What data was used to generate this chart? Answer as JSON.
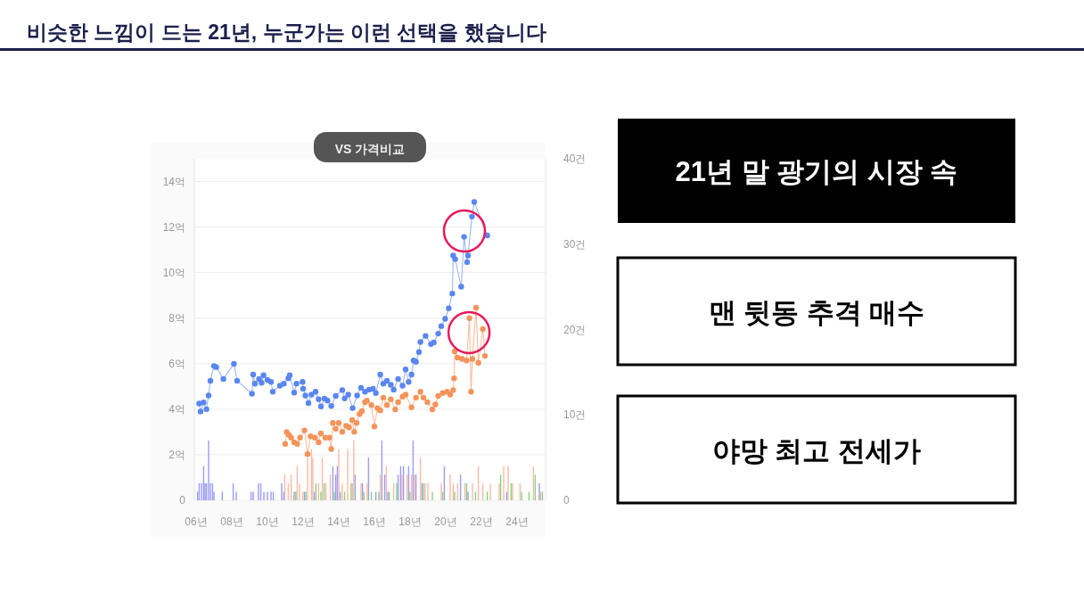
{
  "chart_data": [
    {
      "type": "line",
      "title": "비슷한 느낌이 드는 21년, 누군가는 이런 선택을 했습니다",
      "annotations": [
        "VS 가격비교"
      ],
      "xlim": [
        5.9,
        25.6
      ],
      "xticks": [
        {
          "value": 6,
          "label": "06년"
        },
        {
          "value": 8,
          "label": "08년"
        },
        {
          "value": 10,
          "label": "10년"
        },
        {
          "value": 12,
          "label": "12년"
        },
        {
          "value": 14,
          "label": "14년"
        },
        {
          "value": 16,
          "label": "16년"
        },
        {
          "value": 18,
          "label": "18년"
        },
        {
          "value": 20,
          "label": "20년"
        },
        {
          "value": 22,
          "label": "22년"
        },
        {
          "value": 24,
          "label": "24년"
        }
      ],
      "ylim": [
        0,
        15
      ],
      "yticks": [
        0,
        {
          "value": 2,
          "label": "2억"
        },
        {
          "value": 4,
          "label": "4억"
        },
        {
          "value": 6,
          "label": "6억"
        },
        {
          "value": 8,
          "label": "8억"
        },
        {
          "value": 10,
          "label": "10억"
        },
        {
          "value": 12,
          "label": "12억"
        },
        {
          "value": 14,
          "label": "14억"
        }
      ],
      "y2lim": [
        0,
        40
      ],
      "y2ticks": [
        0,
        {
          "value": 10,
          "label": "10건"
        },
        {
          "value": 20,
          "label": "20건"
        },
        {
          "value": 30,
          "label": "30건"
        },
        {
          "value": 40,
          "label": "40건"
        }
      ],
      "grid": "y",
      "marker": "circle",
      "series": [
        {
          "type": "bar",
          "axis": "y2",
          "color": "#7b7bf5",
          "x": [
            6.08,
            6.17,
            6.3,
            6.42,
            6.5,
            6.58,
            6.7,
            6.8,
            6.92,
            7.0,
            7.47,
            8.08,
            8.25,
            9.08,
            9.2,
            9.5,
            9.63,
            9.8,
            10.0,
            10.2,
            10.33,
            10.8,
            10.92,
            11.5,
            12.08,
            12.63,
            13.67,
            13.83,
            13.92,
            14.08,
            14.92,
            15.33,
            15.67,
            16.08,
            16.42,
            16.58,
            16.75,
            17.33,
            17.47,
            17.63,
            17.92,
            18.17,
            18.33,
            18.67,
            19.92,
            20.83,
            21.25,
            23.42,
            25.25
          ],
          "values": [
            1,
            2,
            2,
            4,
            2,
            2,
            7,
            2,
            2,
            1,
            1,
            2,
            1,
            1,
            1,
            2,
            2,
            1,
            1,
            1,
            1,
            2,
            1,
            1,
            1,
            1,
            4,
            3,
            4,
            1,
            3,
            2,
            5,
            1,
            7,
            3,
            1,
            3,
            4,
            4,
            4,
            7,
            3,
            2,
            4,
            3,
            1,
            1,
            2
          ]
        },
        {
          "type": "bar",
          "axis": "y2",
          "color": "#f5a58a",
          "x": [
            10.97,
            11.17,
            11.33,
            11.67,
            11.8,
            11.99,
            12.25,
            12.47,
            12.55,
            12.87,
            13.08,
            13.28,
            13.53,
            14.0,
            14.2,
            14.5,
            14.67,
            14.84,
            15.25,
            15.59,
            16.33,
            16.67,
            17.08,
            17.55,
            17.83,
            18.08,
            18.25,
            18.58,
            18.84,
            19.0,
            19.75,
            20.25,
            20.42,
            20.67,
            21.08,
            21.5,
            21.83,
            22.08,
            22.5,
            23.0,
            23.25,
            23.5,
            23.75,
            24.17,
            24.92,
            25.33
          ],
          "values": [
            3,
            2,
            3,
            4,
            2,
            1,
            5,
            6,
            5,
            2,
            5,
            2,
            3,
            6,
            2,
            6,
            2,
            7,
            2,
            2,
            3,
            4,
            2,
            3,
            3,
            3,
            3,
            5,
            2,
            2,
            2,
            3,
            2,
            2,
            2,
            2,
            4,
            2,
            2,
            2,
            4,
            4,
            2,
            2,
            4,
            1
          ]
        },
        {
          "type": "bar",
          "axis": "y2",
          "color": "#5cc85c",
          "x": [
            11.59,
            12.16,
            12.72,
            13.0,
            13.18,
            13.75,
            14.33,
            14.75,
            15.41,
            15.83,
            16.25,
            16.83,
            17.25,
            18.0,
            18.75,
            19.25,
            19.83,
            20.5,
            21.17,
            21.67,
            22.33,
            23.08,
            23.67,
            24.26,
            24.67,
            25.02,
            25.42
          ],
          "values": [
            1,
            1,
            2,
            1,
            2,
            1,
            1,
            2,
            1,
            1,
            1,
            1,
            2,
            1,
            2,
            1,
            1,
            1,
            2,
            1,
            1,
            3,
            2,
            1,
            1,
            3,
            1
          ]
        },
        {
          "type": "line",
          "color": "#f4935a",
          "x": [
            11.0,
            11.08,
            11.2,
            11.33,
            11.5,
            11.67,
            11.83,
            12.08,
            12.25,
            12.42,
            12.67,
            12.87,
            13.0,
            13.25,
            13.47,
            13.58,
            13.67,
            13.83,
            14.0,
            14.2,
            14.42,
            14.58,
            14.75,
            14.87,
            15.0,
            15.17,
            15.3,
            15.47,
            15.58,
            15.83,
            16.0,
            16.17,
            16.33,
            16.5,
            16.7,
            16.92,
            17.17,
            17.33,
            17.58,
            17.75,
            18.08,
            18.33,
            18.58,
            18.75,
            18.97,
            19.25,
            19.42,
            19.58,
            19.83,
            20.08,
            20.25,
            20.42,
            20.47,
            20.5,
            20.67,
            20.92,
            21.17,
            21.33,
            21.42,
            21.5,
            21.7,
            21.83,
            22.08,
            22.2
          ],
          "values": [
            2.48,
            3.0,
            2.88,
            2.75,
            2.55,
            2.48,
            2.75,
            3.07,
            2.03,
            2.81,
            2.75,
            2.55,
            2.94,
            2.75,
            2.75,
            2.25,
            3.4,
            3.14,
            3.4,
            3.01,
            3.27,
            3.2,
            3.53,
            3.01,
            3.4,
            3.79,
            3.92,
            4.31,
            4.38,
            4.18,
            3.24,
            4.05,
            3.95,
            4.51,
            4.18,
            4.44,
            3.99,
            4.31,
            4.55,
            4.64,
            4.08,
            4.51,
            4.77,
            4.51,
            4.31,
            3.99,
            4.21,
            4.58,
            4.71,
            4.77,
            4.64,
            4.84,
            5.36,
            6.54,
            6.27,
            6.21,
            6.14,
            8.0,
            4.77,
            6.21,
            8.46,
            6.04,
            7.52,
            6.34
          ]
        },
        {
          "type": "line",
          "color": "#5b86f0",
          "x": [
            6.17,
            6.25,
            6.42,
            6.58,
            6.7,
            6.8,
            7.0,
            7.13,
            7.53,
            8.12,
            8.3,
            9.13,
            9.2,
            9.3,
            9.53,
            9.67,
            9.78,
            10.0,
            10.2,
            10.3,
            10.7,
            10.92,
            11.17,
            11.25,
            11.5,
            11.63,
            11.97,
            12.0,
            12.13,
            12.3,
            12.47,
            12.7,
            12.87,
            13.0,
            13.2,
            13.37,
            13.58,
            13.83,
            14.2,
            14.33,
            14.53,
            14.78,
            15.03,
            15.25,
            15.47,
            15.7,
            15.92,
            16.08,
            16.33,
            16.5,
            16.7,
            16.92,
            17.08,
            17.33,
            17.58,
            17.75,
            17.92,
            18.08,
            18.2,
            18.33,
            18.5,
            18.58,
            18.87,
            19.17,
            19.33,
            19.58,
            19.75,
            19.97,
            20.17,
            20.37,
            20.42,
            20.53,
            20.87,
            21.03,
            21.2,
            21.25,
            21.47,
            21.6,
            22.33
          ],
          "values": [
            4.25,
            3.9,
            4.3,
            4.0,
            4.6,
            5.25,
            5.9,
            5.85,
            5.33,
            5.99,
            5.25,
            4.68,
            5.52,
            5.12,
            5.33,
            5.16,
            5.49,
            5.29,
            5.2,
            4.77,
            5.03,
            5.12,
            5.36,
            5.49,
            4.73,
            5.12,
            5.2,
            4.9,
            4.6,
            4.27,
            4.64,
            4.77,
            4.44,
            4.12,
            4.47,
            4.38,
            4.14,
            4.58,
            4.84,
            4.47,
            4.64,
            4.05,
            4.6,
            4.94,
            4.77,
            4.86,
            4.9,
            4.71,
            5.52,
            5.12,
            5.25,
            5.07,
            4.86,
            5.33,
            5.03,
            5.75,
            5.2,
            5.52,
            6.14,
            6.08,
            6.51,
            6.95,
            7.22,
            6.86,
            6.93,
            7.32,
            7.65,
            7.97,
            8.43,
            9.08,
            10.75,
            10.59,
            9.38,
            11.57,
            10.46,
            10.75,
            12.46,
            13.1,
            11.63
          ]
        }
      ]
    },
    {
      "type": "other",
      "annotations": [
        "21년 말 광기의 시장 속",
        "맨 뒷동 추격 매수",
        "야망 최고 전세가"
      ]
    }
  ]
}
